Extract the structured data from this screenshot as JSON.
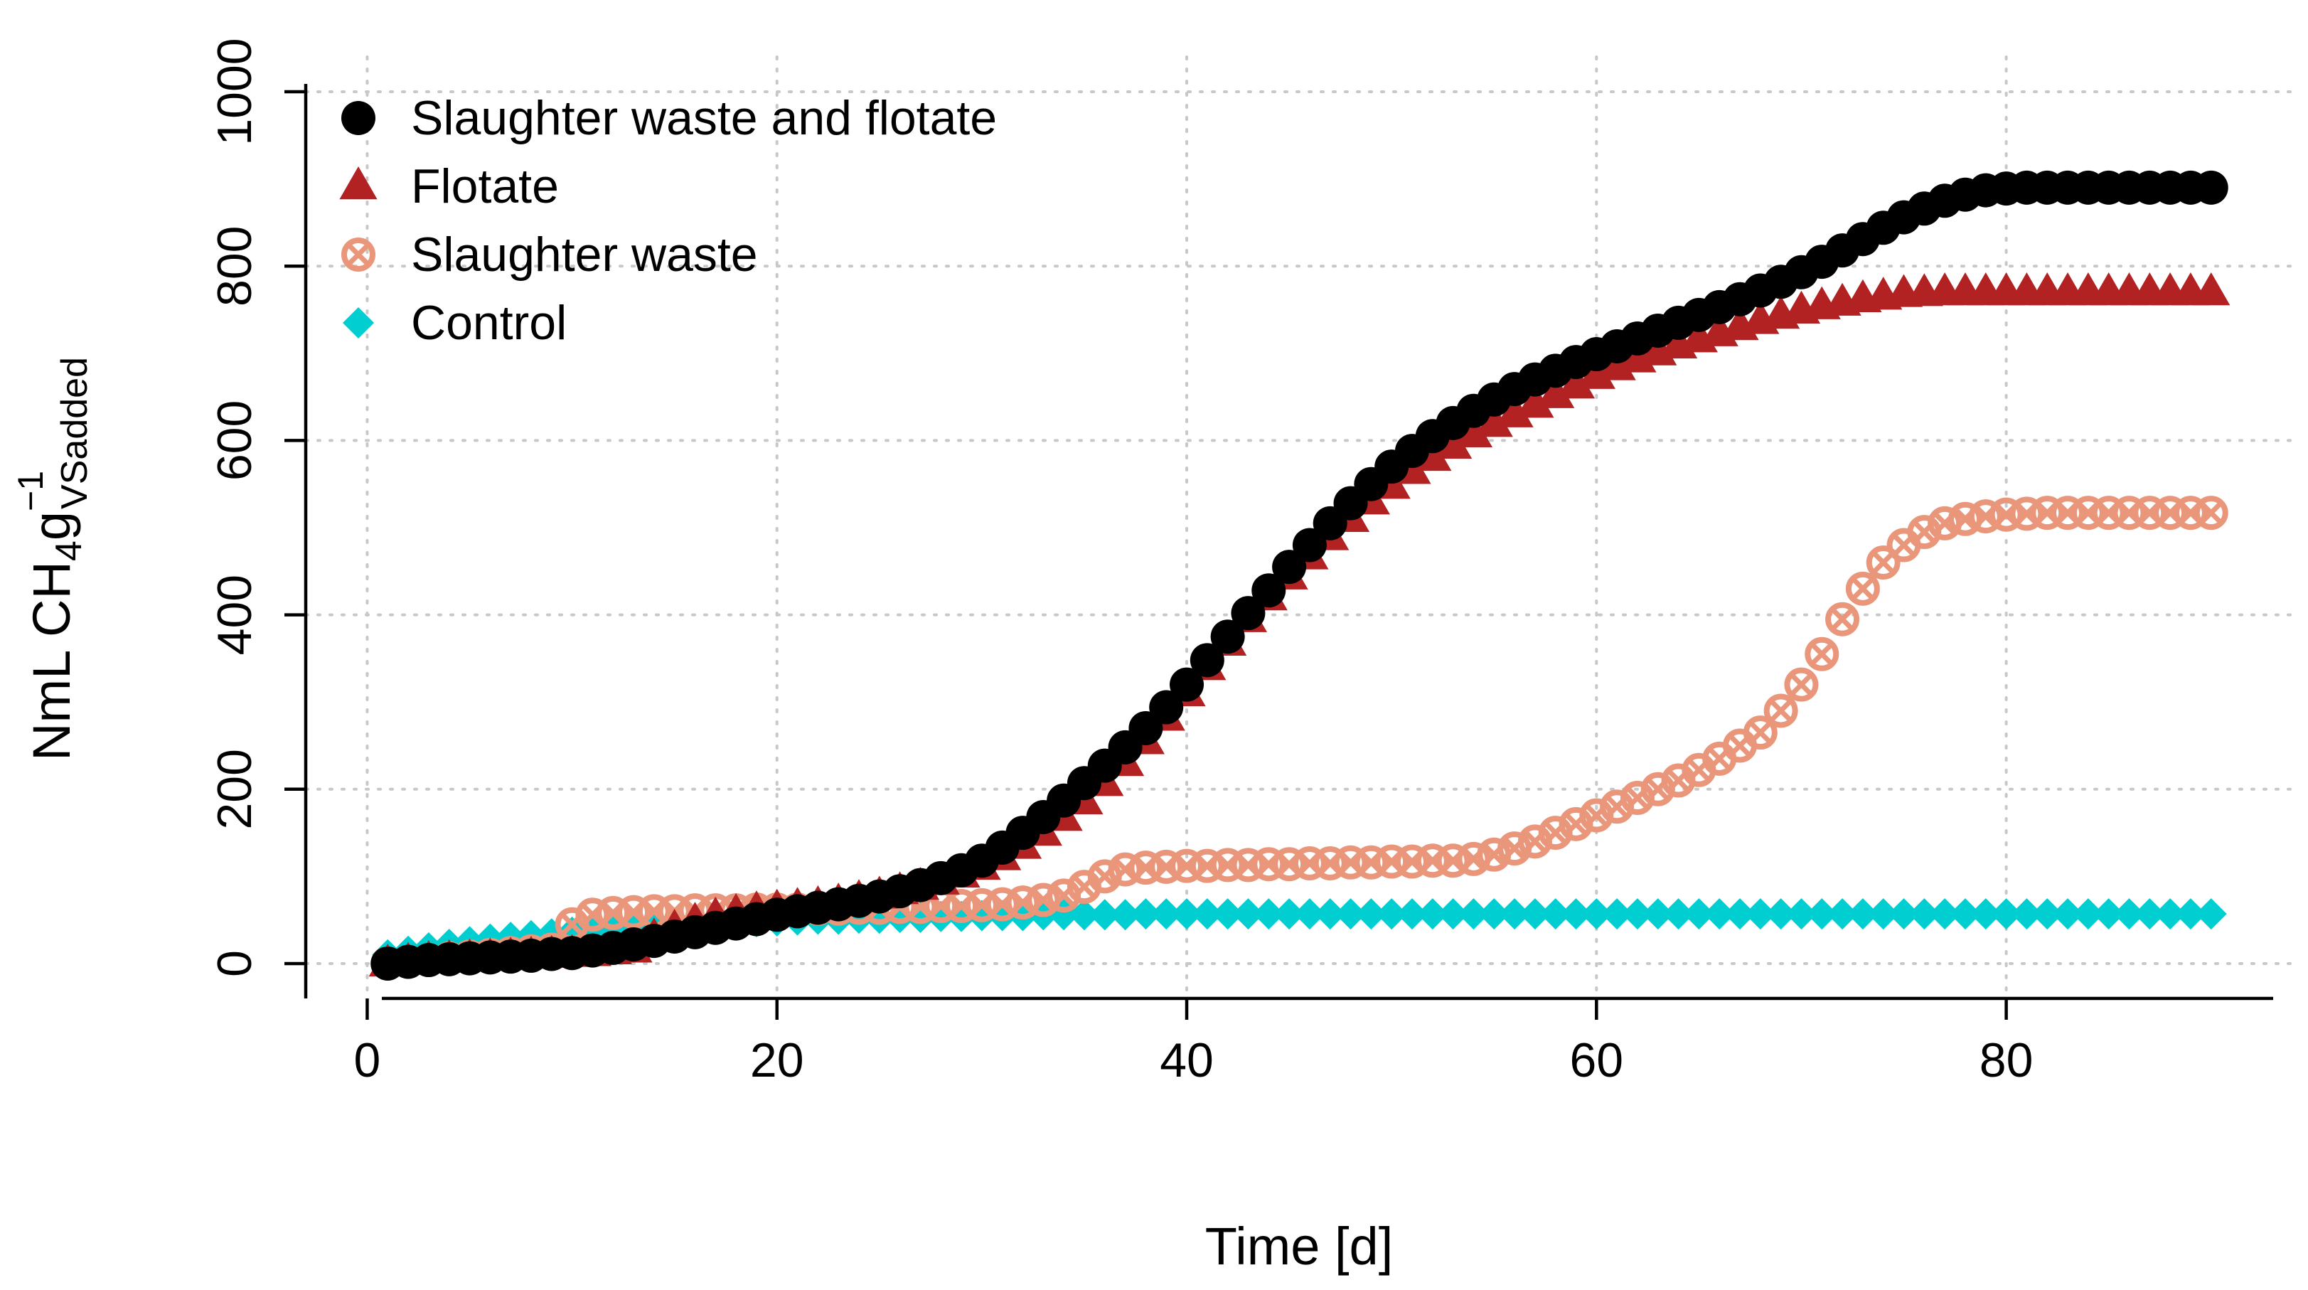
{
  "chart_data": {
    "type": "scatter",
    "title": "",
    "xlabel": "Time [d]",
    "ylabel": {
      "main": "NmL CH",
      "sub1": "4",
      "g": "g",
      "sup": "−1",
      "sub2": "VSadded"
    },
    "xlim": [
      -3,
      94
    ],
    "ylim": [
      -40,
      1040
    ],
    "x_ticks": [
      0,
      20,
      40,
      60,
      80
    ],
    "y_ticks": [
      0,
      200,
      400,
      600,
      800,
      1000
    ],
    "x_tick_labels": [
      "0",
      "20",
      "40",
      "60",
      "80"
    ],
    "y_tick_labels": [
      "0",
      "200",
      "400",
      "600",
      "800",
      "1000"
    ],
    "grid": true,
    "legend_position": "top-left",
    "x": [
      1,
      2,
      3,
      4,
      5,
      6,
      7,
      8,
      9,
      10,
      11,
      12,
      13,
      14,
      15,
      16,
      17,
      18,
      19,
      20,
      21,
      22,
      23,
      24,
      25,
      26,
      27,
      28,
      29,
      30,
      31,
      32,
      33,
      34,
      35,
      36,
      37,
      38,
      39,
      40,
      41,
      42,
      43,
      44,
      45,
      46,
      47,
      48,
      49,
      50,
      51,
      52,
      53,
      54,
      55,
      56,
      57,
      58,
      59,
      60,
      61,
      62,
      63,
      64,
      65,
      66,
      67,
      68,
      69,
      70,
      71,
      72,
      73,
      74,
      75,
      76,
      77,
      78,
      79,
      80,
      81,
      82,
      83,
      84,
      85,
      86,
      87,
      88,
      89,
      90
    ],
    "series": [
      {
        "name": "Slaughter waste and flotate",
        "marker": "circle",
        "color": "#000000",
        "values": [
          0,
          2,
          4,
          5,
          6,
          7,
          8,
          9,
          11,
          12,
          15,
          18,
          22,
          26,
          31,
          36,
          41,
          46,
          51,
          56,
          60,
          64,
          68,
          72,
          77,
          83,
          90,
          98,
          107,
          118,
          133,
          150,
          168,
          187,
          207,
          227,
          248,
          270,
          294,
          320,
          348,
          375,
          402,
          428,
          455,
          480,
          505,
          528,
          550,
          570,
          588,
          605,
          620,
          634,
          647,
          659,
          670,
          680,
          690,
          699,
          708,
          717,
          726,
          735,
          744,
          753,
          762,
          772,
          782,
          793,
          805,
          818,
          831,
          844,
          856,
          866,
          875,
          882,
          887,
          889,
          890,
          890,
          890,
          890,
          890,
          890,
          890,
          890,
          890,
          890
        ]
      },
      {
        "name": "Flotate",
        "marker": "triangle",
        "color": "#b22222",
        "values": [
          0,
          2,
          4,
          5,
          6,
          7,
          8,
          9,
          10,
          11,
          12,
          14,
          16,
          30,
          40,
          48,
          54,
          58,
          61,
          63,
          65,
          67,
          70,
          74,
          78,
          83,
          88,
          94,
          102,
          111,
          122,
          135,
          150,
          167,
          186,
          207,
          230,
          255,
          282,
          310,
          340,
          368,
          395,
          420,
          444,
          467,
          489,
          510,
          530,
          548,
          565,
          580,
          594,
          607,
          619,
          630,
          641,
          652,
          663,
          674,
          684,
          693,
          701,
          709,
          716,
          723,
          730,
          737,
          743,
          749,
          754,
          758,
          762,
          765,
          768,
          769,
          770,
          770,
          770,
          770,
          770,
          770,
          770,
          770,
          770,
          770,
          770,
          770,
          770,
          770
        ]
      },
      {
        "name": "Slaughter waste",
        "marker": "circle-cross",
        "color": "#e9967a",
        "values": [
          0,
          2,
          4,
          6,
          8,
          10,
          12,
          14,
          16,
          45,
          56,
          58,
          59,
          60,
          60,
          61,
          61,
          61,
          62,
          62,
          62,
          63,
          63,
          64,
          64,
          65,
          65,
          66,
          66,
          67,
          68,
          70,
          73,
          78,
          88,
          100,
          108,
          110,
          111,
          112,
          112,
          113,
          113,
          114,
          114,
          115,
          115,
          116,
          116,
          117,
          117,
          118,
          118,
          120,
          125,
          132,
          140,
          150,
          160,
          170,
          180,
          190,
          200,
          210,
          222,
          235,
          250,
          265,
          290,
          320,
          355,
          395,
          430,
          460,
          480,
          495,
          505,
          510,
          513,
          515,
          516,
          517,
          517,
          517,
          517,
          517,
          517,
          517,
          517,
          517
        ]
      },
      {
        "name": "Control",
        "marker": "diamond",
        "color": "#00ced1",
        "values": [
          10,
          14,
          18,
          22,
          25,
          28,
          30,
          32,
          34,
          36,
          38,
          40,
          42,
          43,
          44,
          45,
          46,
          47,
          48,
          49,
          50,
          51,
          51,
          52,
          52,
          53,
          53,
          54,
          54,
          55,
          55,
          55,
          56,
          56,
          56,
          56,
          56,
          57,
          57,
          57,
          57,
          57,
          57,
          57,
          57,
          57,
          57,
          57,
          57,
          57,
          57,
          57,
          57,
          57,
          57,
          57,
          57,
          57,
          57,
          57,
          57,
          57,
          57,
          57,
          57,
          57,
          57,
          57,
          57,
          57,
          57,
          57,
          57,
          57,
          57,
          57,
          57,
          57,
          57,
          57,
          57,
          57,
          57,
          57,
          57,
          57,
          57,
          57,
          57,
          57
        ]
      }
    ]
  }
}
